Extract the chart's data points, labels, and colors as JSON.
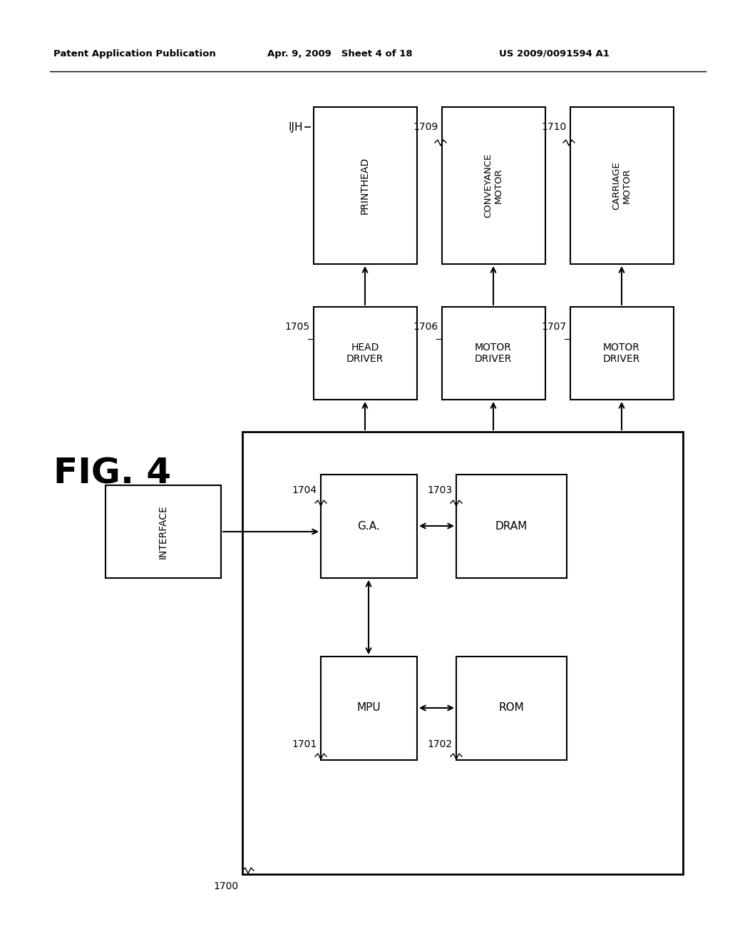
{
  "header_left": "Patent Application Publication",
  "header_center": "Apr. 9, 2009   Sheet 4 of 18",
  "header_right": "US 2009/0091594 A1",
  "bg_color": "#ffffff",
  "fig_label": "FIG. 4",
  "label_1700": "1700",
  "label_1701": "1701",
  "label_1702": "1702",
  "label_1703": "1703",
  "label_1704": "1704",
  "label_1705": "1705",
  "label_1706": "1706",
  "label_1707": "1707",
  "label_1709": "1709",
  "label_1710": "1710",
  "label_IJH": "IJH",
  "text_interface": "INTERFACE",
  "text_ga": "G.A.",
  "text_dram": "DRAM",
  "text_mpu": "MPU",
  "text_rom": "ROM",
  "text_head_driver": "HEAD\nDRIVER",
  "text_motor_driver": "MOTOR\nDRIVER",
  "text_printhead": "PRINTHEAD",
  "text_conveyance_motor": "CONVEYANCE\nMOTOR",
  "text_carriage_motor": "CARRIAGE\nMOTOR"
}
